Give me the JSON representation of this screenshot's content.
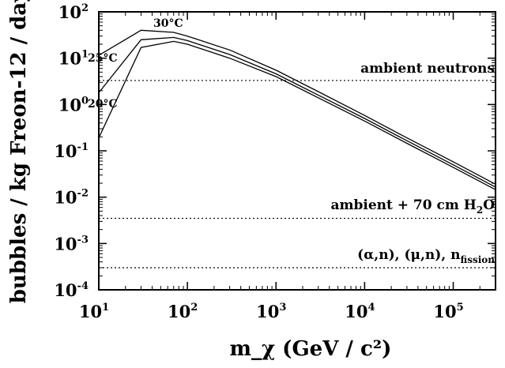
{
  "chart_data": {
    "type": "line",
    "xlabel": "m_χ (GeV / c²)",
    "ylabel": "bubbles / kg Freon-12 / day",
    "x_scale": "log",
    "y_scale": "log",
    "xlim": [
      10,
      300000
    ],
    "ylim": [
      0.0001,
      100
    ],
    "x_ticks": [
      {
        "base": "10",
        "exp": "1",
        "value": 10
      },
      {
        "base": "10",
        "exp": "2",
        "value": 100
      },
      {
        "base": "10",
        "exp": "3",
        "value": 1000
      },
      {
        "base": "10",
        "exp": "4",
        "value": 10000
      },
      {
        "base": "10",
        "exp": "5",
        "value": 100000
      }
    ],
    "y_ticks": [
      {
        "base": "10",
        "exp": "2",
        "value": 100
      },
      {
        "base": "10",
        "exp": "1",
        "value": 10
      },
      {
        "base": "10",
        "exp": "0",
        "value": 1
      },
      {
        "base": "10",
        "exp": "-1",
        "value": 0.1
      },
      {
        "base": "10",
        "exp": "-2",
        "value": 0.01
      },
      {
        "base": "10",
        "exp": "-3",
        "value": 0.001
      },
      {
        "base": "10",
        "exp": "-4",
        "value": 0.0001
      }
    ],
    "series": [
      {
        "name": "30°C",
        "x": [
          10,
          30,
          70,
          100,
          300,
          1000,
          3000,
          10000,
          30000,
          100000,
          300000
        ],
        "y": [
          11.5,
          40,
          36,
          30,
          15,
          5.5,
          1.9,
          0.58,
          0.19,
          0.058,
          0.019
        ]
      },
      {
        "name": "25°C",
        "x": [
          10,
          30,
          70,
          100,
          300,
          1000,
          3000,
          10000,
          30000,
          100000,
          300000
        ],
        "y": [
          1.8,
          25,
          28,
          24,
          12,
          4.6,
          1.6,
          0.5,
          0.165,
          0.05,
          0.0165
        ]
      },
      {
        "name": "20°C",
        "x": [
          10,
          30,
          70,
          100,
          300,
          1000,
          3000,
          10000,
          30000,
          100000,
          300000
        ],
        "y": [
          0.19,
          17,
          23,
          20,
          10,
          4.0,
          1.4,
          0.44,
          0.145,
          0.044,
          0.0145
        ]
      }
    ],
    "reference_lines": [
      {
        "key": "ambient",
        "value": 3.3,
        "style": "dotted"
      },
      {
        "key": "shielded",
        "value": 0.0035,
        "style": "dotted"
      },
      {
        "key": "fission",
        "value": 0.0003,
        "style": "dotted"
      }
    ],
    "annotations": {
      "ambient": "ambient neutrons",
      "shielded_main": "ambient + 70 cm H",
      "shielded_sub": "2",
      "shielded_tail": "O",
      "fission_main": "(α,n), (μ,n), n",
      "fission_sub": "fission"
    },
    "grid": false
  }
}
